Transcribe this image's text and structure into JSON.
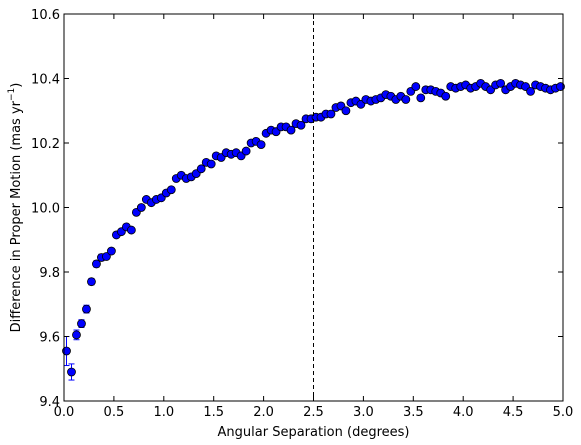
{
  "chart_data": {
    "type": "scatter",
    "xlabel": "Angular Separation (degrees)",
    "ylabel_main": "Difference in Proper Motion (mas yr",
    "ylabel_sup": "−1",
    "ylabel_end": ")",
    "xlim": [
      0.0,
      5.0
    ],
    "ylim": [
      9.4,
      10.6
    ],
    "x_ticks": [
      "0.0",
      "0.5",
      "1.0",
      "1.5",
      "2.0",
      "2.5",
      "3.0",
      "3.5",
      "4.0",
      "4.5",
      "5.0"
    ],
    "y_ticks": [
      "9.4",
      "9.6",
      "9.8",
      "10.0",
      "10.2",
      "10.4",
      "10.6"
    ],
    "vline_x": 2.5,
    "marker_color": "#0000ff",
    "series": [
      {
        "x": [
          0.025,
          0.075,
          0.125,
          0.175,
          0.225,
          0.275,
          0.325,
          0.375,
          0.425,
          0.475,
          0.525,
          0.575,
          0.625,
          0.675,
          0.725,
          0.775,
          0.825,
          0.875,
          0.925,
          0.975,
          1.025,
          1.075,
          1.125,
          1.175,
          1.225,
          1.275,
          1.325,
          1.375,
          1.425,
          1.475,
          1.525,
          1.575,
          1.625,
          1.675,
          1.725,
          1.775,
          1.825,
          1.875,
          1.925,
          1.975,
          2.025,
          2.075,
          2.125,
          2.175,
          2.225,
          2.275,
          2.325,
          2.375,
          2.425,
          2.475,
          2.525,
          2.575,
          2.625,
          2.675,
          2.725,
          2.775,
          2.825,
          2.875,
          2.925,
          2.975,
          3.025,
          3.075,
          3.125,
          3.175,
          3.225,
          3.275,
          3.325,
          3.375,
          3.425,
          3.475,
          3.525,
          3.575,
          3.625,
          3.675,
          3.725,
          3.775,
          3.825,
          3.875,
          3.925,
          3.975,
          4.025,
          4.075,
          4.125,
          4.175,
          4.225,
          4.275,
          4.325,
          4.375,
          4.425,
          4.475,
          4.525,
          4.575,
          4.625,
          4.675,
          4.725,
          4.775,
          4.825,
          4.875,
          4.925,
          4.975
        ],
        "y": [
          9.555,
          9.49,
          9.605,
          9.64,
          9.685,
          9.77,
          9.825,
          9.845,
          9.848,
          9.865,
          9.915,
          9.925,
          9.94,
          9.93,
          9.985,
          10.0,
          10.025,
          10.015,
          10.025,
          10.03,
          10.045,
          10.055,
          10.09,
          10.1,
          10.09,
          10.095,
          10.105,
          10.12,
          10.14,
          10.135,
          10.16,
          10.155,
          10.17,
          10.165,
          10.17,
          10.16,
          10.175,
          10.2,
          10.205,
          10.195,
          10.23,
          10.24,
          10.235,
          10.25,
          10.25,
          10.24,
          10.26,
          10.255,
          10.275,
          10.275,
          10.28,
          10.28,
          10.29,
          10.29,
          10.31,
          10.315,
          10.3,
          10.325,
          10.33,
          10.32,
          10.335,
          10.33,
          10.335,
          10.34,
          10.35,
          10.345,
          10.335,
          10.345,
          10.335,
          10.36,
          10.375,
          10.34,
          10.365,
          10.365,
          10.36,
          10.355,
          10.345,
          10.375,
          10.37,
          10.375,
          10.38,
          10.37,
          10.375,
          10.385,
          10.375,
          10.365,
          10.38,
          10.385,
          10.365,
          10.375,
          10.385,
          10.38,
          10.375,
          10.36,
          10.38,
          10.375,
          10.37,
          10.365,
          10.37,
          10.375
        ],
        "err": [
          0.045,
          0.025,
          0.015,
          0.012,
          0.012,
          0.01,
          0.01,
          0.01,
          0.008,
          0.008,
          0.007,
          0.007,
          0.006,
          0.006,
          0.006,
          0.006,
          0.005,
          0.005,
          0.005,
          0.005,
          0.005,
          0.005,
          0.005,
          0.005,
          0.005,
          0.005,
          0.005,
          0.005,
          0.005,
          0.005,
          0.005,
          0.005,
          0.005,
          0.005,
          0.005,
          0.005,
          0.005,
          0.005,
          0.005,
          0.005,
          0.005,
          0.005,
          0.005,
          0.005,
          0.005,
          0.005,
          0.005,
          0.005,
          0.005,
          0.005,
          0.005,
          0.005,
          0.005,
          0.005,
          0.005,
          0.005,
          0.005,
          0.005,
          0.005,
          0.005,
          0.005,
          0.005,
          0.005,
          0.005,
          0.005,
          0.005,
          0.005,
          0.005,
          0.005,
          0.005,
          0.005,
          0.005,
          0.005,
          0.005,
          0.005,
          0.005,
          0.005,
          0.005,
          0.005,
          0.005,
          0.005,
          0.005,
          0.005,
          0.005,
          0.005,
          0.005,
          0.005,
          0.005,
          0.005,
          0.005,
          0.005,
          0.005,
          0.005,
          0.005,
          0.005,
          0.005,
          0.005,
          0.005,
          0.005,
          0.005
        ]
      }
    ]
  }
}
